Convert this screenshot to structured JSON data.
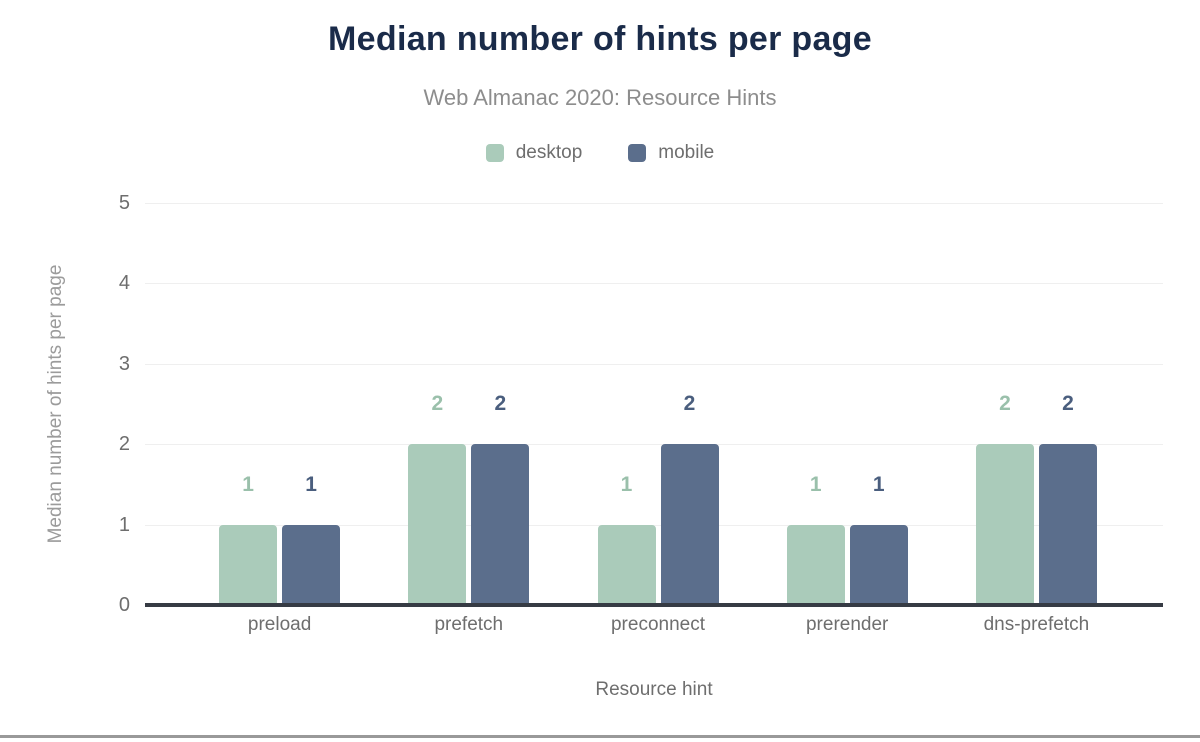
{
  "header": {
    "title": "Median number of hints per page",
    "subtitle": "Web Almanac 2020: Resource Hints"
  },
  "chart_data": {
    "type": "bar",
    "title": "Median number of hints per page",
    "subtitle": "Web Almanac 2020: Resource Hints",
    "categories": [
      "preload",
      "prefetch",
      "preconnect",
      "prerender",
      "dns-prefetch"
    ],
    "series": [
      {
        "name": "desktop",
        "values": [
          1,
          2,
          1,
          1,
          2
        ],
        "color": "#aacbba",
        "label_color": "#9ac0ab"
      },
      {
        "name": "mobile",
        "values": [
          1,
          2,
          2,
          1,
          2
        ],
        "color": "#5b6e8c",
        "label_color": "#4a5e7e"
      }
    ],
    "xlabel": "Resource hint",
    "ylabel": "Median number of hints per page",
    "ylim": [
      0,
      5
    ],
    "yticks": [
      0,
      1,
      2,
      3,
      4,
      5
    ],
    "grid": true,
    "legend_position": "top",
    "value_labels": true,
    "colors": {
      "title": "#1a2b49",
      "subtitle": "#8d8d8d",
      "tick_label": "#6e6e6e",
      "axis_title": "#9b9b9b",
      "axis_line": "#363b44",
      "gridline": "#efefef",
      "footer_rule": "#999999",
      "background": "#ffffff"
    }
  }
}
